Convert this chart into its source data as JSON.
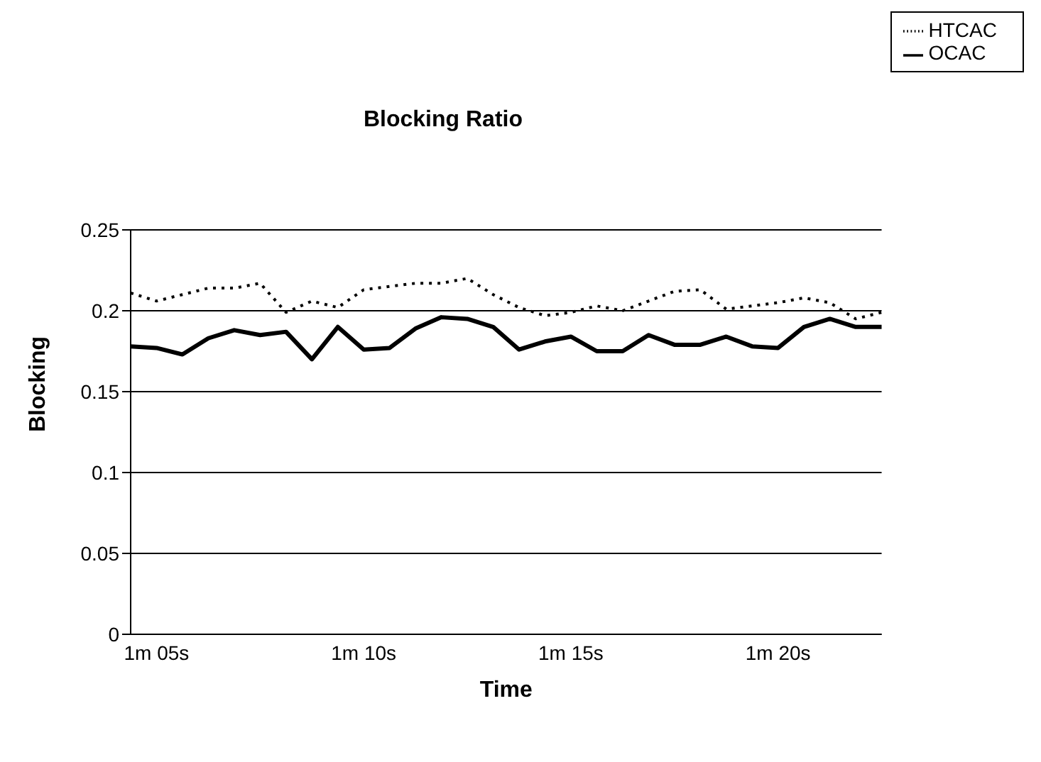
{
  "chart_data": {
    "type": "line",
    "title": "Blocking Ratio",
    "xlabel": "Time",
    "ylabel": "Blocking",
    "categories": [
      null,
      "1m 05s",
      null,
      null,
      null,
      null,
      null,
      null,
      null,
      "1m 10s",
      null,
      null,
      null,
      null,
      null,
      null,
      null,
      "1m 15s",
      null,
      null,
      null,
      null,
      null,
      null,
      null,
      "1m 20s",
      null,
      null,
      null,
      null
    ],
    "series": [
      {
        "name": "OCAC",
        "color": "#000000",
        "line_style": "solid",
        "values": [
          0.178,
          0.177,
          0.173,
          0.183,
          0.188,
          0.185,
          0.187,
          0.17,
          0.19,
          0.176,
          0.177,
          0.189,
          0.196,
          0.195,
          0.19,
          0.176,
          0.181,
          0.184,
          0.175,
          0.175,
          0.185,
          0.179,
          0.179,
          0.184,
          0.178,
          0.177,
          0.19,
          0.195,
          0.19,
          0.19
        ]
      },
      {
        "name": "HTCAC",
        "color": "#000000",
        "line_style": "dotted",
        "values": [
          0.211,
          0.206,
          0.21,
          0.214,
          0.214,
          0.217,
          0.199,
          0.206,
          0.202,
          0.213,
          0.215,
          0.217,
          0.217,
          0.22,
          0.21,
          0.202,
          0.197,
          0.199,
          0.203,
          0.2,
          0.206,
          0.212,
          0.213,
          0.201,
          0.203,
          0.205,
          0.208,
          0.205,
          0.195,
          0.199
        ]
      }
    ],
    "ylim": [
      0,
      0.25
    ],
    "yticks": [
      0,
      0.05,
      0.1,
      0.15,
      0.2,
      0.25
    ],
    "grid": "y",
    "legend": "top right",
    "marker": "none"
  }
}
